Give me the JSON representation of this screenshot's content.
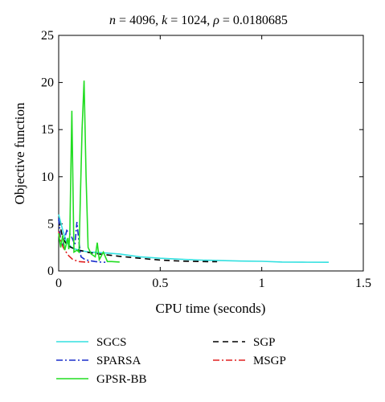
{
  "chart_data": {
    "type": "line",
    "title": "n = 4096, k = 1024, ρ = 0.0180685",
    "title_parts": {
      "n_sym": "n",
      "n_val": " = 4096, ",
      "k_sym": "k",
      "k_val": " = 1024, ",
      "rho_sym": "ρ",
      "rho_val": " = 0.0180685"
    },
    "xlabel": "CPU time (seconds)",
    "ylabel": "Objective function",
    "xlim": [
      0,
      1.5
    ],
    "ylim": [
      0,
      25
    ],
    "x_ticks": [
      "0",
      "0.5",
      "1",
      "1.5"
    ],
    "y_ticks": [
      "0",
      "5",
      "10",
      "15",
      "20",
      "25"
    ],
    "grid": false,
    "legend_position": "bottom",
    "series": [
      {
        "name": "SGCS",
        "color": "#33e0e0",
        "dash": "solid",
        "points": [
          [
            0,
            6.0
          ],
          [
            0.02,
            4.3
          ],
          [
            0.04,
            3.0
          ],
          [
            0.07,
            2.4
          ],
          [
            0.1,
            2.2
          ],
          [
            0.15,
            2.0
          ],
          [
            0.2,
            1.95
          ],
          [
            0.3,
            1.8
          ],
          [
            0.4,
            1.5
          ],
          [
            0.5,
            1.35
          ],
          [
            0.6,
            1.25
          ],
          [
            0.7,
            1.15
          ],
          [
            0.8,
            1.1
          ],
          [
            0.9,
            1.05
          ],
          [
            1.0,
            1.02
          ],
          [
            1.1,
            0.95
          ],
          [
            1.2,
            0.93
          ],
          [
            1.33,
            0.92
          ]
        ]
      },
      {
        "name": "SGP",
        "color": "#000000",
        "dash": "7,5",
        "points": [
          [
            0,
            5.4
          ],
          [
            0.01,
            4.5
          ],
          [
            0.02,
            3.5
          ],
          [
            0.04,
            2.8
          ],
          [
            0.06,
            2.5
          ],
          [
            0.1,
            2.2
          ],
          [
            0.15,
            1.95
          ],
          [
            0.2,
            1.8
          ],
          [
            0.3,
            1.55
          ],
          [
            0.4,
            1.35
          ],
          [
            0.5,
            1.15
          ],
          [
            0.6,
            1.05
          ],
          [
            0.7,
            1.0
          ],
          [
            0.78,
            0.98
          ]
        ]
      },
      {
        "name": "SPARSA",
        "color": "#1a2ecc",
        "dash": "8,3,2,3",
        "points": [
          [
            0,
            5.6
          ],
          [
            0.01,
            3.2
          ],
          [
            0.02,
            2.7
          ],
          [
            0.04,
            4.3
          ],
          [
            0.06,
            3.8
          ],
          [
            0.08,
            2.8
          ],
          [
            0.09,
            5.2
          ],
          [
            0.1,
            3.0
          ],
          [
            0.11,
            1.5
          ],
          [
            0.13,
            1.2
          ],
          [
            0.15,
            1.1
          ],
          [
            0.18,
            1.0
          ],
          [
            0.2,
            0.95
          ],
          [
            0.23,
            0.92
          ]
        ]
      },
      {
        "name": "MSGP",
        "color": "#e02020",
        "dash": "8,3,2,3",
        "points": [
          [
            0,
            4.2
          ],
          [
            0.01,
            3.2
          ],
          [
            0.02,
            2.6
          ],
          [
            0.03,
            2.2
          ],
          [
            0.05,
            1.6
          ],
          [
            0.07,
            1.2
          ],
          [
            0.1,
            1.0
          ],
          [
            0.13,
            0.95
          ],
          [
            0.16,
            0.95
          ]
        ]
      },
      {
        "name": "GPSR-BB",
        "color": "#22dd22",
        "dash": "solid",
        "points": [
          [
            0,
            4.0
          ],
          [
            0.01,
            2.5
          ],
          [
            0.02,
            3.8
          ],
          [
            0.03,
            2.2
          ],
          [
            0.045,
            3.5
          ],
          [
            0.05,
            2.3
          ],
          [
            0.055,
            4.0
          ],
          [
            0.065,
            17.0
          ],
          [
            0.075,
            2.0
          ],
          [
            0.09,
            2.2
          ],
          [
            0.1,
            2.0
          ],
          [
            0.115,
            15.0
          ],
          [
            0.125,
            20.2
          ],
          [
            0.135,
            10.0
          ],
          [
            0.145,
            2.5
          ],
          [
            0.16,
            1.8
          ],
          [
            0.18,
            1.5
          ],
          [
            0.19,
            3.0
          ],
          [
            0.2,
            1.2
          ],
          [
            0.22,
            2.0
          ],
          [
            0.24,
            1.0
          ],
          [
            0.26,
            1.0
          ],
          [
            0.3,
            0.95
          ]
        ]
      }
    ]
  }
}
